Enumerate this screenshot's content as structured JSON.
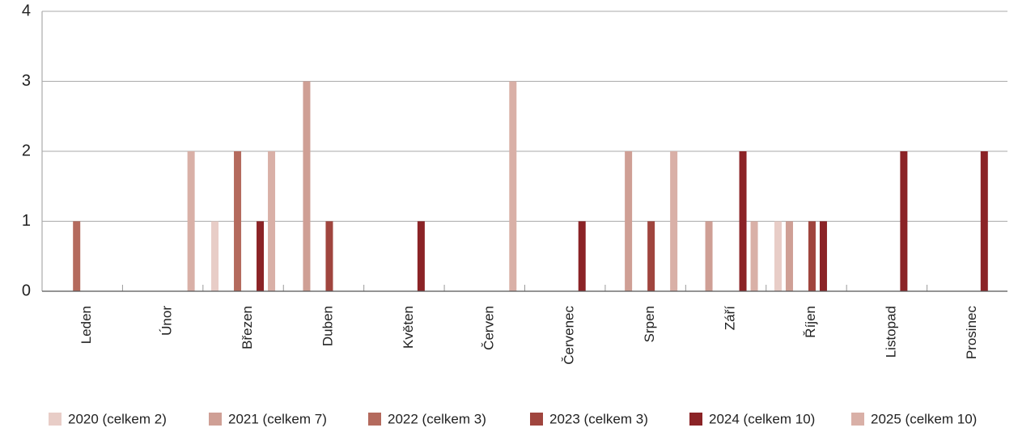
{
  "chart_data": {
    "type": "bar",
    "categories": [
      "Leden",
      "Únor",
      "Březen",
      "Duben",
      "Květen",
      "Červen",
      "Červenec",
      "Srpen",
      "Září",
      "Říjen",
      "Listopad",
      "Prosinec"
    ],
    "series": [
      {
        "name": "2020 (celkem 2)",
        "color": "#e8cdc7",
        "values": [
          0,
          0,
          1,
          0,
          0,
          0,
          0,
          0,
          0,
          1,
          0,
          0
        ]
      },
      {
        "name": "2021 (celkem 7)",
        "color": "#cf9f95",
        "values": [
          0,
          0,
          0,
          3,
          0,
          0,
          0,
          2,
          1,
          1,
          0,
          0
        ]
      },
      {
        "name": "2022 (celkem 3)",
        "color": "#b46a5d",
        "values": [
          1,
          0,
          2,
          0,
          0,
          0,
          0,
          0,
          0,
          0,
          0,
          0
        ]
      },
      {
        "name": "2023 (celkem 3)",
        "color": "#a0453e",
        "values": [
          0,
          0,
          0,
          1,
          0,
          0,
          0,
          1,
          0,
          1,
          0,
          0
        ]
      },
      {
        "name": "2024 (celkem 10)",
        "color": "#8b2326",
        "values": [
          0,
          0,
          1,
          0,
          1,
          0,
          1,
          0,
          2,
          1,
          2,
          2
        ]
      },
      {
        "name": "2025 (celkem 10)",
        "color": "#d9b0a7",
        "values": [
          0,
          2,
          2,
          0,
          0,
          3,
          0,
          2,
          1,
          0,
          0,
          0
        ]
      }
    ],
    "ylim": [
      0,
      4
    ],
    "yticks": [
      0,
      1,
      2,
      3,
      4
    ],
    "grid": true,
    "legend": "bottom"
  }
}
